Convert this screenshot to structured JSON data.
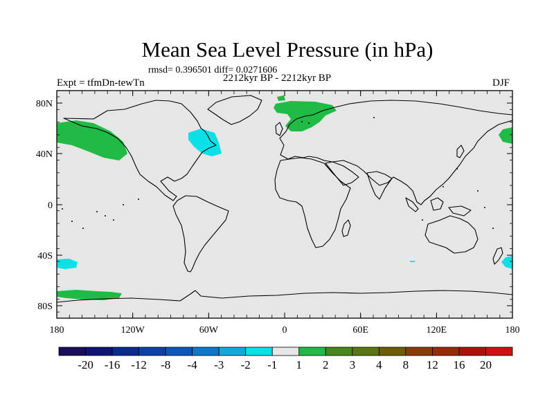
{
  "title": "Mean Sea Level Pressure (in hPa)",
  "stats": "rmsd= 0.396501 diff= 0.0271606",
  "period": "2212kyr BP - 2212kyr BP",
  "experiment": "Expt = tfmDn-tewTn",
  "season": "DJF",
  "map": {
    "background_color": "#e6e6e6",
    "lat_labels": [
      "80N",
      "40N",
      "0",
      "40S",
      "80S"
    ],
    "lon_labels": [
      "180",
      "120W",
      "60W",
      "0",
      "60E",
      "120E",
      "180"
    ]
  },
  "colorbar": {
    "colors": [
      "#1b0b5c",
      "#0e1476",
      "#0b2a8f",
      "#0b40a8",
      "#0b57bd",
      "#0b78cc",
      "#13a7dd",
      "#0ae0e8",
      "#e6e6e6",
      "#1fbb44",
      "#47881a",
      "#5a7612",
      "#6e5c06",
      "#8a3c06",
      "#992a06",
      "#a81506",
      "#cc1111"
    ],
    "labels": [
      "-20",
      "-16",
      "-12",
      "-8",
      "-4",
      "-3",
      "-2",
      "-1",
      "1",
      "2",
      "3",
      "4",
      "8",
      "12",
      "16",
      "20"
    ]
  },
  "anomaly_colors": {
    "positive": "#1fbb44",
    "negative": "#0ae0e8"
  }
}
